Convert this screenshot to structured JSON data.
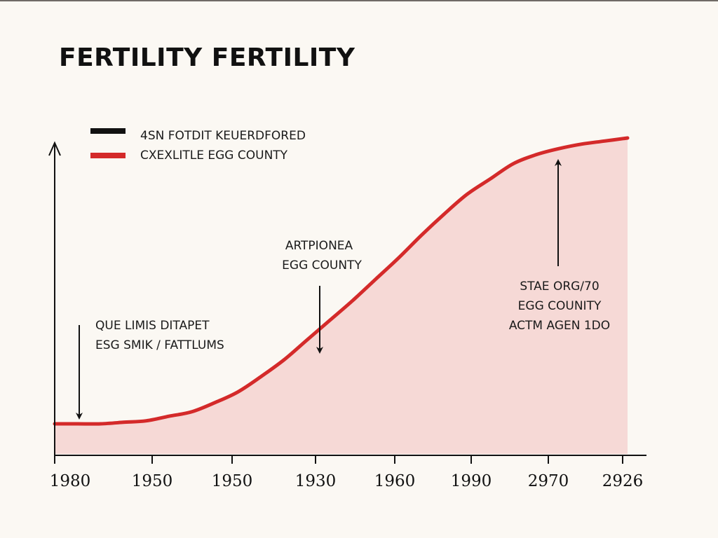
{
  "chart_data": {
    "type": "area",
    "title": "FERTILITY FERTILITY",
    "xlabel": "",
    "ylabel": "",
    "x_tick_labels": [
      "1980",
      "1950",
      "1950",
      "1930",
      "1960",
      "1990",
      "2970",
      "2926"
    ],
    "y_range_normalized": [
      0,
      1
    ],
    "series": [
      {
        "name": "CXEXLITLE EGG COUNTY",
        "color": "#d42a2a",
        "fill_color": "#f6d9d6",
        "values": [
          0.1,
          0.1,
          0.1,
          0.11,
          0.12,
          0.15,
          0.18,
          0.24,
          0.31,
          0.41,
          0.52,
          0.65,
          0.78,
          0.91,
          1.05,
          1.19,
          1.34,
          1.48,
          1.61,
          1.71,
          1.81,
          1.87,
          1.91,
          1.94,
          1.96,
          1.98
        ]
      }
    ],
    "legend": {
      "placement": "top-left",
      "entries": [
        {
          "label": "4SN FOTDIT KEUERDFORED",
          "color": "#111111"
        },
        {
          "label": "CXEXLITLE EGG COUNTY",
          "color": "#d42a2a"
        }
      ]
    },
    "annotations": [
      {
        "lines": [
          "QUE LIMIS DITAPET",
          "ESG SMIK / FATTLUMS"
        ],
        "arrow": "down"
      },
      {
        "lines": [
          "ARTPIONEA",
          "EGG COUNTY"
        ],
        "arrow": "down"
      },
      {
        "lines": [
          "STAE ORG/70",
          "EGG COUNITY",
          "ACTM AGEN 1DO"
        ],
        "arrow": "up"
      }
    ],
    "grid": false
  }
}
